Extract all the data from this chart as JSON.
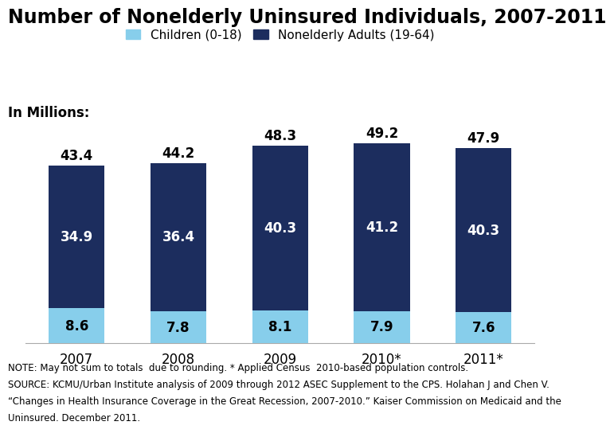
{
  "title": "Number of Nonelderly Uninsured Individuals, 2007-2011",
  "years": [
    "2007",
    "2008",
    "2009",
    "2010*",
    "2011*"
  ],
  "children": [
    8.6,
    7.8,
    8.1,
    7.9,
    7.6
  ],
  "adults": [
    34.9,
    36.4,
    40.3,
    41.2,
    40.3
  ],
  "totals": [
    43.4,
    44.2,
    48.3,
    49.2,
    47.9
  ],
  "children_color": "#87CEEB",
  "adults_color": "#1C2D5E",
  "legend_children_label": "Children (0-18)",
  "legend_adults_label": "Nonelderly Adults (19-64)",
  "in_millions_label": "In Millions:",
  "note_line1": "NOTE: May not sum to totals  due to rounding. * Applied Census  2010-based population controls.",
  "note_line2": "SOURCE: KCMU/Urban Institute analysis of 2009 through 2012 ASEC Supplement to the CPS. Holahan J and Chen V.",
  "note_line3": "“Changes in Health Insurance Coverage in the Great Recession, 2007-2010.” Kaiser Commission on Medicaid and the",
  "note_line4": "Uninsured. December 2011.",
  "bar_width": 0.55,
  "ylim": [
    0,
    56
  ],
  "title_fontsize": 17,
  "label_fontsize": 12,
  "tick_fontsize": 12,
  "note_fontsize": 8.5,
  "legend_fontsize": 11,
  "in_millions_fontsize": 12
}
